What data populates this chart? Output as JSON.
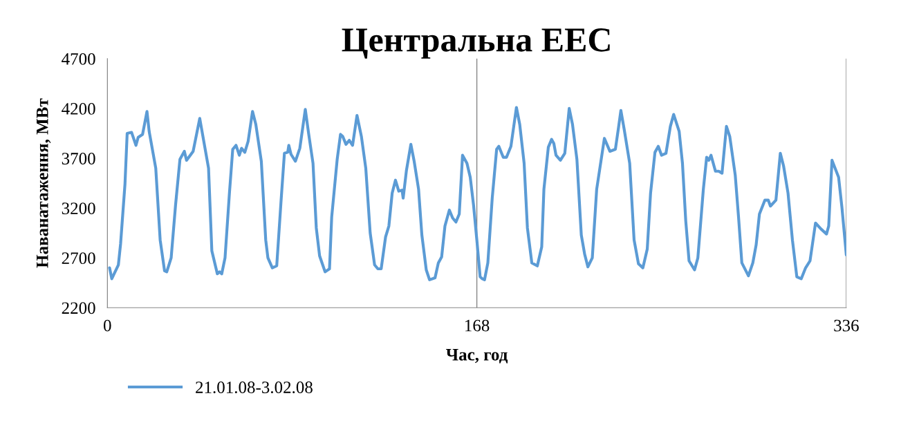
{
  "chart_data": {
    "type": "line",
    "title": "Центральна ЕЕС",
    "xlabel": "Час, год",
    "ylabel": "Наванатаження, МВт",
    "xlim": [
      0,
      336
    ],
    "xticks": [
      0,
      168,
      336
    ],
    "ylim": [
      2200,
      4700
    ],
    "yticks": [
      2200,
      2700,
      3200,
      3700,
      4200,
      4700
    ],
    "grid": "x",
    "legend": "bottom",
    "marker": "none",
    "line_style": "solid",
    "x": [
      1,
      2,
      5,
      6,
      8,
      9,
      11,
      13,
      14,
      16,
      18,
      19,
      22,
      24,
      26,
      27,
      29,
      31,
      33,
      35,
      36,
      39,
      42,
      46,
      47.5,
      50,
      51,
      52,
      53.5,
      55.5,
      57,
      58.5,
      60,
      61,
      62.5,
      64,
      66,
      67.5,
      70,
      72,
      73,
      75,
      77,
      79,
      80.5,
      82,
      82.5,
      83.5,
      85.5,
      87.5,
      90,
      91.5,
      93.5,
      95,
      96.5,
      99,
      101,
      102,
      104.5,
      106,
      107,
      108.5,
      110,
      111.5,
      113.5,
      115.5,
      117.5,
      119.5,
      121.5,
      123,
      124.5,
      126.5,
      128,
      129.5,
      131,
      132.5,
      134,
      134.5,
      136,
      138,
      139.5,
      141.5,
      143,
      145,
      146.5,
      149,
      150.5,
      152,
      153.5,
      155.5,
      157,
      158.5,
      160,
      161.5,
      163.5,
      165,
      166.5,
      168,
      169.5,
      170.5,
      171.5,
      173,
      175,
      177,
      178,
      180,
      181.5,
      183.5,
      186,
      187.5,
      189.5,
      191,
      193,
      195.5,
      197.5,
      198.5,
      200.5,
      202,
      203,
      204,
      206,
      208,
      210,
      211.5,
      213.5,
      215.5,
      217,
      218.5,
      220.5,
      222.5,
      226,
      228.5,
      231,
      232.5,
      233.5,
      235,
      237.5,
      239.5,
      241.5,
      243.5,
      245.5,
      247,
      249,
      250.5,
      252,
      254,
      256,
      257.5,
      260,
      261.5,
      263,
      264.5,
      267,
      268.5,
      271,
      272.5,
      273.5,
      274.5,
      276.5,
      278,
      279.5,
      281.5,
      283,
      285.5,
      287,
      288.5,
      291.5,
      293.5,
      295,
      296.5,
      299,
      300.5,
      301.5,
      304,
      306,
      307.5,
      309.5,
      311.5,
      313.5,
      315.5,
      317.5,
      319.5,
      322,
      324.5,
      327,
      328,
      329.5,
      332.5,
      334,
      336
    ],
    "series": [
      {
        "name": "21.01.08-3.02.08",
        "color": "#5b9bd5",
        "values": [
          2600,
          2490,
          2630,
          2840,
          3440,
          3950,
          3960,
          3830,
          3910,
          3940,
          4170,
          3970,
          3600,
          2880,
          2570,
          2560,
          2700,
          3230,
          3690,
          3770,
          3680,
          3770,
          4100,
          3600,
          2770,
          2540,
          2560,
          2540,
          2700,
          3350,
          3790,
          3830,
          3730,
          3800,
          3760,
          3870,
          4170,
          4040,
          3670,
          2880,
          2700,
          2600,
          2620,
          3280,
          3750,
          3760,
          3830,
          3740,
          3670,
          3800,
          4190,
          3950,
          3650,
          3000,
          2720,
          2560,
          2590,
          3110,
          3690,
          3940,
          3920,
          3840,
          3880,
          3830,
          4130,
          3920,
          3600,
          2950,
          2630,
          2590,
          2590,
          2910,
          3020,
          3350,
          3480,
          3370,
          3380,
          3300,
          3580,
          3840,
          3670,
          3390,
          2930,
          2580,
          2480,
          2500,
          2650,
          2710,
          3020,
          3180,
          3100,
          3060,
          3140,
          3730,
          3650,
          3510,
          3230,
          2880,
          2510,
          2490,
          2480,
          2650,
          3300,
          3790,
          3820,
          3710,
          3710,
          3820,
          4210,
          4040,
          3650,
          3000,
          2650,
          2620,
          2810,
          3390,
          3810,
          3890,
          3850,
          3730,
          3680,
          3750,
          4200,
          4040,
          3690,
          2930,
          2740,
          2610,
          2700,
          3390,
          3900,
          3770,
          3790,
          4020,
          4180,
          3990,
          3650,
          2880,
          2640,
          2600,
          2790,
          3350,
          3760,
          3820,
          3730,
          3750,
          4020,
          4140,
          3970,
          3650,
          3070,
          2670,
          2580,
          2700,
          3390,
          3710,
          3680,
          3730,
          3570,
          3570,
          3550,
          4020,
          3920,
          3530,
          3110,
          2650,
          2520,
          2650,
          2830,
          3140,
          3280,
          3280,
          3220,
          3280,
          3750,
          3620,
          3350,
          2880,
          2510,
          2490,
          2600,
          2670,
          3050,
          2990,
          2940,
          3020,
          3680,
          3510,
          3210,
          2730
        ]
      }
    ]
  }
}
